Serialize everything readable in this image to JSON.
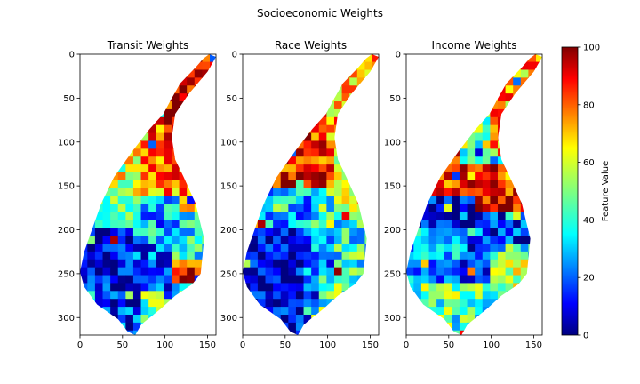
{
  "figure": {
    "suptitle": "Socioeconomic Weights"
  },
  "chart_data": {
    "type": "heatmap",
    "colormap": "jet",
    "panels": [
      {
        "title": "Transit Weights",
        "xlim": [
          0,
          160
        ],
        "ylim": [
          320,
          0
        ],
        "xticks": [
          "0",
          "50",
          "100",
          "150"
        ],
        "yticks": [
          "0",
          "50",
          "100",
          "150",
          "200",
          "250",
          "300"
        ],
        "seed": 11,
        "regions": [
          {
            "x": [
              95,
              160
            ],
            "y": [
              0,
              55
            ],
            "v": 92
          },
          {
            "x": [
              95,
              125
            ],
            "y": [
              55,
              115
            ],
            "v": 90
          },
          {
            "x": [
              60,
              100
            ],
            "y": [
              70,
              115
            ],
            "v": 80
          },
          {
            "x": [
              30,
              70
            ],
            "y": [
              100,
              150
            ],
            "v": 58
          },
          {
            "x": [
              60,
              130
            ],
            "y": [
              120,
              160
            ],
            "v": 75
          },
          {
            "x": [
              120,
              160
            ],
            "y": [
              130,
              180
            ],
            "v": 72
          },
          {
            "x": [
              10,
              70
            ],
            "y": [
              150,
              200
            ],
            "v": 42
          },
          {
            "x": [
              70,
              130
            ],
            "y": [
              160,
              220
            ],
            "v": 30
          },
          {
            "x": [
              0,
              60
            ],
            "y": [
              200,
              260
            ],
            "v": 8
          },
          {
            "x": [
              50,
              110
            ],
            "y": [
              220,
              270
            ],
            "v": 20
          },
          {
            "x": [
              100,
              160
            ],
            "y": [
              230,
              260
            ],
            "v": 85
          },
          {
            "x": [
              20,
              70
            ],
            "y": [
              260,
              320
            ],
            "v": 15
          },
          {
            "x": [
              60,
              110
            ],
            "y": [
              270,
              320
            ],
            "v": 45
          }
        ]
      },
      {
        "title": "Race Weights",
        "xlim": [
          0,
          160
        ],
        "ylim": [
          320,
          0
        ],
        "xticks": [
          "0",
          "50",
          "100",
          "150"
        ],
        "yticks": [
          "0",
          "50",
          "100",
          "150",
          "200",
          "250",
          "300"
        ],
        "seed": 23,
        "regions": [
          {
            "x": [
              95,
              160
            ],
            "y": [
              0,
              120
            ],
            "v": 72
          },
          {
            "x": [
              60,
              100
            ],
            "y": [
              65,
              130
            ],
            "v": 85
          },
          {
            "x": [
              30,
              110
            ],
            "y": [
              120,
              150
            ],
            "v": 88
          },
          {
            "x": [
              110,
              160
            ],
            "y": [
              130,
              180
            ],
            "v": 65
          },
          {
            "x": [
              10,
              80
            ],
            "y": [
              150,
              200
            ],
            "v": 32
          },
          {
            "x": [
              80,
              160
            ],
            "y": [
              170,
              210
            ],
            "v": 40
          },
          {
            "x": [
              0,
              70
            ],
            "y": [
              200,
              320
            ],
            "v": 8
          },
          {
            "x": [
              60,
              110
            ],
            "y": [
              210,
              260
            ],
            "v": 25
          },
          {
            "x": [
              90,
              160
            ],
            "y": [
              240,
              320
            ],
            "v": 45
          },
          {
            "x": [
              40,
              90
            ],
            "y": [
              260,
              320
            ],
            "v": 15
          }
        ]
      },
      {
        "title": "Income Weights",
        "xlim": [
          0,
          160
        ],
        "ylim": [
          320,
          0
        ],
        "xticks": [
          "0",
          "50",
          "100",
          "150"
        ],
        "yticks": [
          "0",
          "50",
          "100",
          "150",
          "200",
          "250",
          "300"
        ],
        "seed": 37,
        "regions": [
          {
            "x": [
              95,
              160
            ],
            "y": [
              0,
              120
            ],
            "v": 72
          },
          {
            "x": [
              60,
              100
            ],
            "y": [
              65,
              130
            ],
            "v": 50
          },
          {
            "x": [
              30,
              80
            ],
            "y": [
              100,
              160
            ],
            "v": 80
          },
          {
            "x": [
              80,
              160
            ],
            "y": [
              130,
              180
            ],
            "v": 88
          },
          {
            "x": [
              10,
              100
            ],
            "y": [
              150,
              200
            ],
            "v": 10
          },
          {
            "x": [
              90,
              160
            ],
            "y": [
              170,
              220
            ],
            "v": 15
          },
          {
            "x": [
              0,
              60
            ],
            "y": [
              200,
              260
            ],
            "v": 30
          },
          {
            "x": [
              50,
              100
            ],
            "y": [
              210,
              260
            ],
            "v": 18
          },
          {
            "x": [
              100,
              160
            ],
            "y": [
              230,
              270
            ],
            "v": 60
          },
          {
            "x": [
              20,
              90
            ],
            "y": [
              260,
              320
            ],
            "v": 45
          }
        ]
      }
    ],
    "colorbar": {
      "label": "Feature Value",
      "range": [
        0,
        100
      ],
      "ticks": [
        "0",
        "20",
        "40",
        "60",
        "80",
        "100"
      ]
    }
  }
}
